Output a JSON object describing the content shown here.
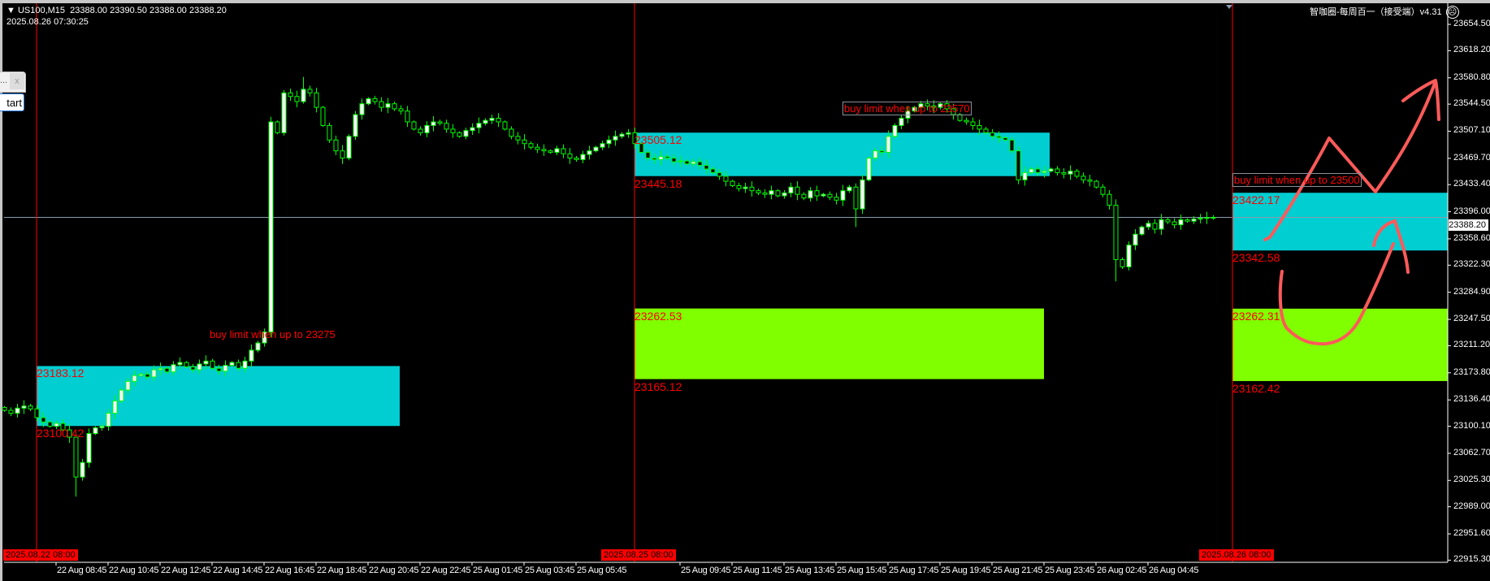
{
  "header": {
    "symbol": "US100,M15",
    "ohlc": "23388.00 23390.50 23388.00 23388.20",
    "datetime": "2025.08.26 07:30:25",
    "indicator_name": "智咖圈-每周百一（接受端）v4.31",
    "indicator_icon": "sad-face-icon"
  },
  "popup": {
    "title": "...",
    "close_label": "x",
    "button_label": "tart"
  },
  "price_axis": {
    "labels": [
      "23654.50",
      "23618.20",
      "23580.80",
      "23544.50",
      "23507.10",
      "23469.70",
      "23433.40",
      "23396.00",
      "23358.60",
      "23322.30",
      "23284.90",
      "23247.50",
      "23211.20",
      "23173.80",
      "23136.40",
      "23100.10",
      "23062.70",
      "23025.30",
      "22989.00",
      "22951.60",
      "22915.30"
    ],
    "current_price": "23388.20"
  },
  "time_axis": {
    "labels": [
      "22 Aug 08:45",
      "22 Aug 10:45",
      "22 Aug 12:45",
      "22 Aug 14:45",
      "22 Aug 16:45",
      "22 Aug 18:45",
      "22 Aug 20:45",
      "22 Aug 22:45",
      "25 Aug 01:45",
      "25 Aug 03:45",
      "25 Aug 05:45",
      "25 Aug 09:45",
      "25 Aug 11:45",
      "25 Aug 13:45",
      "25 Aug 15:45",
      "25 Aug 17:45",
      "25 Aug 19:45",
      "25 Aug 21:45",
      "25 Aug 23:45",
      "26 Aug 02:45",
      "26 Aug 04:45"
    ],
    "session_markers": [
      "2025.08.22 08:00",
      "2025.08.25 08:00",
      "2025.08.26 08:00"
    ]
  },
  "zones": [
    {
      "session": 0,
      "color": "#00ced1",
      "top": 23183.12,
      "bottom": 23100.42,
      "top_label": "23183.12",
      "bottom_label": "23100.42"
    },
    {
      "session": 1,
      "color": "#00ced1",
      "top": 23505.12,
      "bottom": 23445.18,
      "top_label": "23505.12",
      "bottom_label": "23445.18"
    },
    {
      "session": 1,
      "color": "#7fff00",
      "top": 23262.53,
      "bottom": 23165.12,
      "top_label": "23262.53",
      "bottom_label": "23165.12"
    },
    {
      "session": 2,
      "color": "#00ced1",
      "top": 23422.17,
      "bottom": 23342.58,
      "top_label": "23422.17",
      "bottom_label": "23342.58"
    },
    {
      "session": 2,
      "color": "#7fff00",
      "top": 23262.31,
      "bottom": 23162.42,
      "top_label": "23262.31",
      "bottom_label": "23162.42"
    }
  ],
  "notes": [
    {
      "text": "buy limit when up to 23275",
      "boxed": false
    },
    {
      "text": "buy limit when up to 23570",
      "boxed": true
    },
    {
      "text": "buy limit when up to 23500",
      "boxed": true
    }
  ],
  "colors": {
    "background": "#000000",
    "candle": "#00ff00",
    "bull_body": "#ffffff",
    "bear_body": "#000000",
    "session_line": "#ff0000",
    "level_text": "#ff0000",
    "drawing": "#ff5a5a",
    "cyan_zone": "#00ced1",
    "green_zone": "#7fff00"
  },
  "chart_data": {
    "type": "candlestick",
    "symbol": "US100",
    "timeframe": "M15",
    "ylim": [
      22915.3,
      23654.5
    ],
    "grid": false,
    "closes": [
      23122,
      23118,
      23125,
      23128,
      23124,
      23112,
      23106,
      23100,
      23104,
      23095,
      23085,
      23030,
      23050,
      23090,
      23098,
      23100,
      23118,
      23135,
      23150,
      23162,
      23170,
      23172,
      23168,
      23178,
      23180,
      23175,
      23185,
      23188,
      23182,
      23178,
      23186,
      23190,
      23180,
      23176,
      23184,
      23188,
      23180,
      23190,
      23205,
      23215,
      23230,
      23520,
      23505,
      23560,
      23555,
      23548,
      23565,
      23560,
      23540,
      23515,
      23495,
      23480,
      23470,
      23500,
      23530,
      23545,
      23552,
      23548,
      23540,
      23545,
      23538,
      23535,
      23520,
      23510,
      23505,
      23515,
      23520,
      23518,
      23510,
      23505,
      23500,
      23508,
      23512,
      23518,
      23522,
      23525,
      23520,
      23510,
      23500,
      23495,
      23490,
      23485,
      23482,
      23480,
      23478,
      23483,
      23476,
      23470,
      23468,
      23475,
      23480,
      23485,
      23490,
      23495,
      23500,
      23503,
      23505,
      23490,
      23478,
      23470,
      23468,
      23472,
      23470,
      23465,
      23466,
      23462,
      23465,
      23460,
      23455,
      23450,
      23445,
      23438,
      23432,
      23428,
      23430,
      23425,
      23422,
      23420,
      23425,
      23418,
      23422,
      23430,
      23420,
      23415,
      23425,
      23418,
      23420,
      23416,
      23412,
      23425,
      23430,
      23400,
      23440,
      23470,
      23480,
      23478,
      23500,
      23515,
      23525,
      23535,
      23540,
      23545,
      23542,
      23540,
      23545,
      23538,
      23530,
      23522,
      23520,
      23515,
      23510,
      23505,
      23500,
      23498,
      23495,
      23480,
      23440,
      23450,
      23455,
      23450,
      23452,
      23455,
      23450,
      23448,
      23452,
      23445,
      23440,
      23438,
      23430,
      23420,
      23405,
      23330,
      23320,
      23350,
      23365,
      23375,
      23380,
      23372,
      23385,
      23382,
      23378,
      23385,
      23383,
      23386,
      23387,
      23388,
      23388.2
    ],
    "extreme_lows": {
      "11": 23003,
      "131": 23375,
      "171": 23300
    },
    "extreme_highs": {
      "46": 23582
    }
  }
}
